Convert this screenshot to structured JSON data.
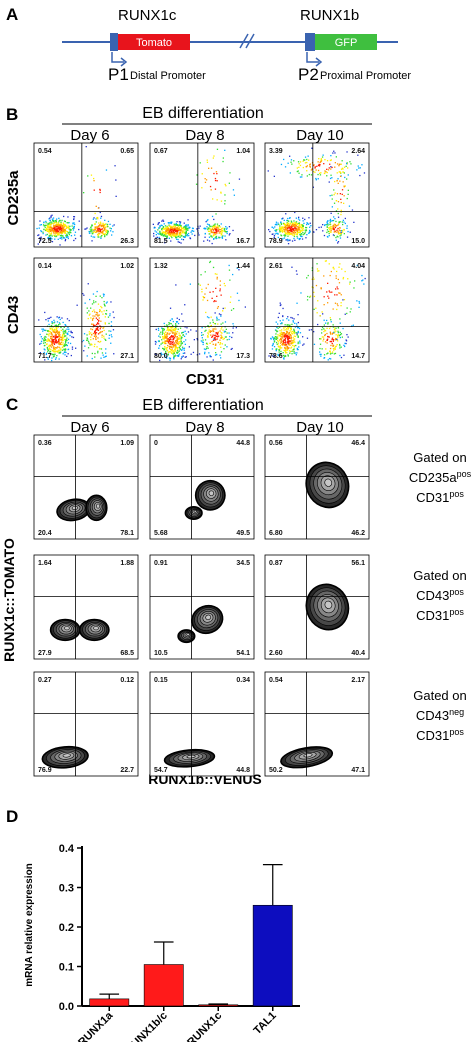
{
  "panels": {
    "a": "A",
    "b": "B",
    "c": "C",
    "d": "D"
  },
  "panel_a": {
    "gene_c": "RUNX1c",
    "gene_b": "RUNX1b",
    "reporter_c": "Tomato",
    "reporter_b": "GFP",
    "p1": "P1",
    "p1_desc": "Distal Promoter",
    "p2": "P2",
    "p2_desc": "Proximal Promoter",
    "colors": {
      "tomato": "#e8141c",
      "gfp": "#3fbf3f",
      "line": "#3a63b0"
    }
  },
  "panel_b": {
    "header": "EB differentiation",
    "days": [
      "Day 6",
      "Day 8",
      "Day 10"
    ],
    "row_labels": [
      "CD235a",
      "CD43"
    ],
    "x_label": "CD31",
    "rows": [
      [
        {
          "ul": "0.54",
          "ur": "0.65",
          "ll": "72.5",
          "lr": "26.3"
        },
        {
          "ul": "0.67",
          "ur": "1.04",
          "ll": "81.5",
          "lr": "16.7"
        },
        {
          "ul": "3.39",
          "ur": "2.64",
          "ll": "78.9",
          "lr": "15.0"
        }
      ],
      [
        {
          "ul": "0.14",
          "ur": "1.02",
          "ll": "71.7",
          "lr": "27.1"
        },
        {
          "ul": "1.32",
          "ur": "1.44",
          "ll": "80.0",
          "lr": "17.3"
        },
        {
          "ul": "2.61",
          "ur": "4.04",
          "ll": "78.6",
          "lr": "14.7"
        }
      ]
    ]
  },
  "panel_c": {
    "header": "EB differentiation",
    "days": [
      "Day 6",
      "Day 8",
      "Day 10"
    ],
    "y_label": "RUNX1c::TOMATO",
    "x_label": "RUNX1b::VENUS",
    "gates": [
      {
        "line1": "Gated on",
        "m2": "CD235a",
        "s2": "pos",
        "m3": "CD31",
        "s3": "pos"
      },
      {
        "line1": "Gated on",
        "m2": "CD43",
        "s2": "pos",
        "m3": "CD31",
        "s3": "pos"
      },
      {
        "line1": "Gated on",
        "m2": "CD43",
        "s2": "neg",
        "m3": "CD31",
        "s3": "pos"
      }
    ],
    "rows": [
      [
        {
          "ul": "0.36",
          "ur": "1.09",
          "ll": "20.4",
          "lr": "78.1"
        },
        {
          "ul": "0",
          "ur": "44.8",
          "ll": "5.68",
          "lr": "49.5"
        },
        {
          "ul": "0.56",
          "ur": "46.4",
          "ll": "6.80",
          "lr": "46.2"
        }
      ],
      [
        {
          "ul": "1.64",
          "ur": "1.88",
          "ll": "27.9",
          "lr": "68.5"
        },
        {
          "ul": "0.91",
          "ur": "34.5",
          "ll": "10.5",
          "lr": "54.1"
        },
        {
          "ul": "0.87",
          "ur": "56.1",
          "ll": "2.60",
          "lr": "40.4"
        }
      ],
      [
        {
          "ul": "0.27",
          "ur": "0.12",
          "ll": "76.9",
          "lr": "22.7"
        },
        {
          "ul": "0.15",
          "ur": "0.34",
          "ll": "54.7",
          "lr": "44.8"
        },
        {
          "ul": "0.54",
          "ur": "2.17",
          "ll": "50.2",
          "lr": "47.1"
        }
      ]
    ]
  },
  "chart_data": {
    "type": "bar",
    "categories": [
      "RUNX1a",
      "RUNX1b/c",
      "RUNX1c",
      "TAL1"
    ],
    "values": [
      0.018,
      0.105,
      0.003,
      0.255
    ],
    "errors": [
      0.012,
      0.057,
      0.002,
      0.103
    ],
    "colors": [
      "#ff1a1a",
      "#ff1a1a",
      "#ff1a1a",
      "#0d0dbf"
    ],
    "ylabel": "mRNA relative expression",
    "ylim": [
      0.0,
      0.4
    ],
    "yticks": [
      "0.0",
      "0.1",
      "0.2",
      "0.3",
      "0.4"
    ],
    "grid": false
  }
}
